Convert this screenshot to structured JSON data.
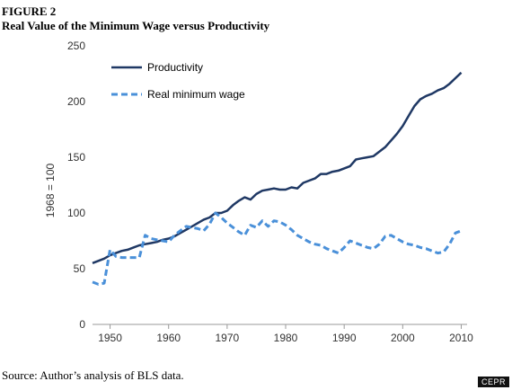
{
  "figure": {
    "label": "FIGURE 2",
    "title": "Real Value of the Minimum Wage versus Productivity",
    "source": "Source: Author’s analysis of BLS data.",
    "watermark": "CEPR"
  },
  "colors": {
    "productivity": "#1f3864",
    "minimum_wage": "#4a90d9",
    "axis": "#999999"
  },
  "chart_data": {
    "type": "line",
    "title": "",
    "xlabel": "",
    "ylabel": "1968 = 100",
    "xlim": [
      1947,
      2011
    ],
    "ylim": [
      0,
      250
    ],
    "x_ticks": [
      1950,
      1960,
      1970,
      1980,
      1990,
      2000,
      2010
    ],
    "y_ticks": [
      0,
      50,
      100,
      150,
      200,
      250
    ],
    "grid": false,
    "legend_position": "top-left",
    "series": [
      {
        "name": "Productivity",
        "style": "solid",
        "x": [
          1947,
          1948,
          1949,
          1950,
          1951,
          1952,
          1953,
          1954,
          1955,
          1956,
          1957,
          1958,
          1959,
          1960,
          1961,
          1962,
          1963,
          1964,
          1965,
          1966,
          1967,
          1968,
          1969,
          1970,
          1971,
          1972,
          1973,
          1974,
          1975,
          1976,
          1977,
          1978,
          1979,
          1980,
          1981,
          1982,
          1983,
          1984,
          1985,
          1986,
          1987,
          1988,
          1989,
          1990,
          1991,
          1992,
          1993,
          1994,
          1995,
          1996,
          1997,
          1998,
          1999,
          2000,
          2001,
          2002,
          2003,
          2004,
          2005,
          2006,
          2007,
          2008,
          2009,
          2010
        ],
        "values": [
          55,
          57,
          59,
          62,
          64,
          66,
          67,
          69,
          71,
          72,
          73,
          74,
          76,
          77,
          79,
          82,
          85,
          88,
          91,
          94,
          96,
          100,
          100,
          102,
          107,
          111,
          114,
          112,
          117,
          120,
          121,
          122,
          121,
          121,
          123,
          122,
          127,
          129,
          131,
          135,
          135,
          137,
          138,
          140,
          142,
          148,
          149,
          150,
          151,
          155,
          159,
          165,
          171,
          178,
          187,
          196,
          202,
          205,
          207,
          210,
          212,
          216,
          221,
          226
        ]
      },
      {
        "name": "Real minimum wage",
        "style": "dashed",
        "x": [
          1947,
          1948,
          1949,
          1950,
          1951,
          1952,
          1953,
          1954,
          1955,
          1956,
          1957,
          1958,
          1959,
          1960,
          1961,
          1962,
          1963,
          1964,
          1965,
          1966,
          1967,
          1968,
          1969,
          1970,
          1971,
          1972,
          1973,
          1974,
          1975,
          1976,
          1977,
          1978,
          1979,
          1980,
          1981,
          1982,
          1983,
          1984,
          1985,
          1986,
          1987,
          1988,
          1989,
          1990,
          1991,
          1992,
          1993,
          1994,
          1995,
          1996,
          1997,
          1998,
          1999,
          2000,
          2001,
          2002,
          2003,
          2004,
          2005,
          2006,
          2007,
          2008,
          2009,
          2010
        ],
        "values": [
          38,
          36,
          37,
          67,
          61,
          60,
          60,
          60,
          60,
          80,
          77,
          76,
          75,
          74,
          80,
          84,
          88,
          87,
          86,
          84,
          90,
          100,
          96,
          91,
          87,
          83,
          80,
          89,
          87,
          93,
          88,
          93,
          92,
          89,
          85,
          80,
          77,
          74,
          72,
          71,
          68,
          66,
          64,
          69,
          75,
          73,
          71,
          69,
          68,
          72,
          79,
          80,
          77,
          74,
          72,
          71,
          69,
          68,
          66,
          64,
          65,
          72,
          82,
          84
        ]
      }
    ]
  }
}
